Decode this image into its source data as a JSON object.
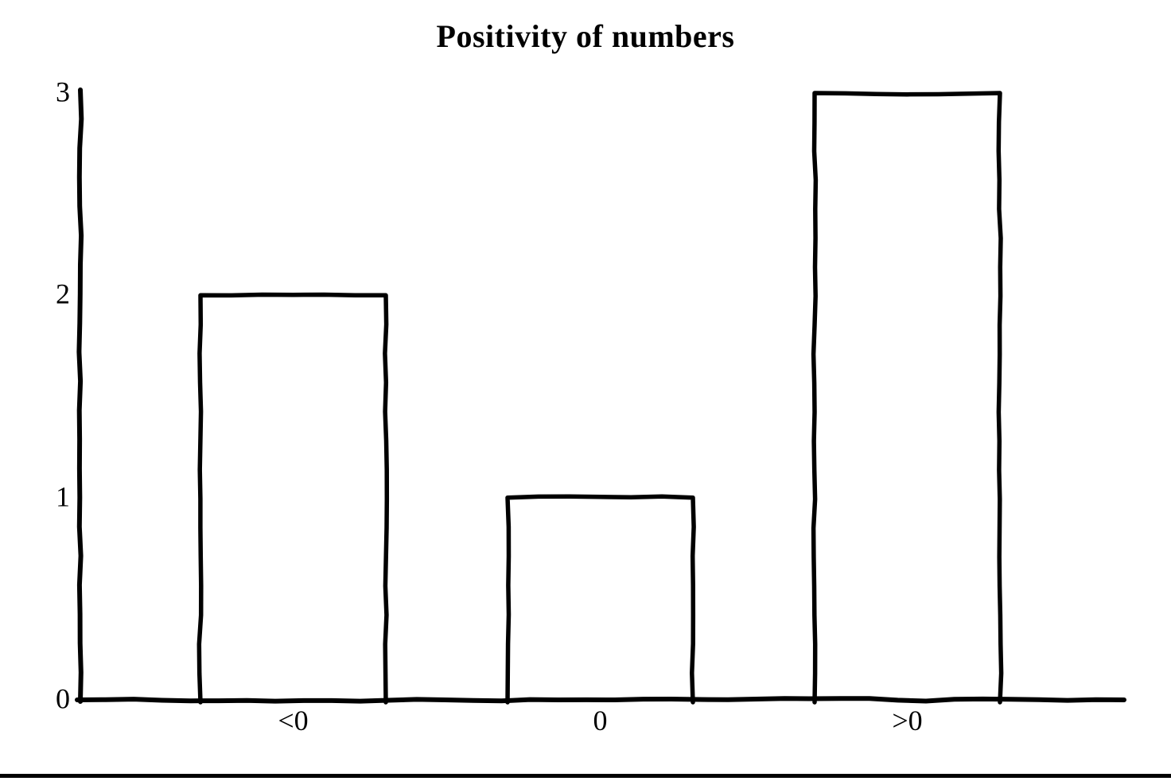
{
  "chart_data": {
    "type": "bar",
    "title": "Positivity of numbers",
    "categories": [
      "<0",
      "0",
      ">0"
    ],
    "values": [
      2,
      1,
      3
    ],
    "xlabel": "",
    "ylabel": "",
    "ylim": [
      0,
      3
    ],
    "yticks": [
      0,
      1,
      2,
      3
    ],
    "grid": false,
    "legend": false,
    "style": "hand-drawn-sketch",
    "colors": {
      "stroke": "#000000",
      "bar_fill": "#ffffff",
      "background": "#ffffff",
      "text": "#000000"
    }
  }
}
